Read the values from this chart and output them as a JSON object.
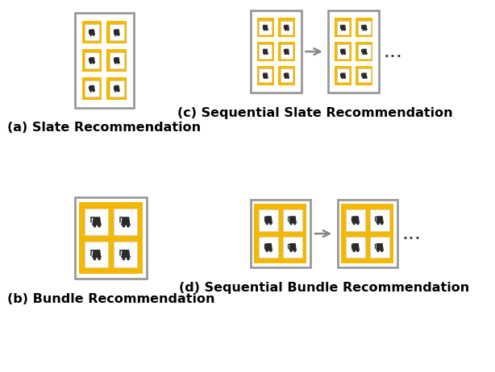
{
  "bg_color": "#ffffff",
  "outer_box_color": "#999999",
  "orange_color": "#f5b800",
  "white_color": "#ffffff",
  "cart_color": "#2a2a2a",
  "label_a": "(a) Slate Recommendation",
  "label_b": "(b) Bundle Recommendation",
  "label_c": "(c) Sequential Slate Recommendation",
  "label_d": "(d) Sequential Bundle Recommendation",
  "arrow_color": "#888888",
  "label_fontsize": 11.5,
  "dots_fontsize": 18
}
